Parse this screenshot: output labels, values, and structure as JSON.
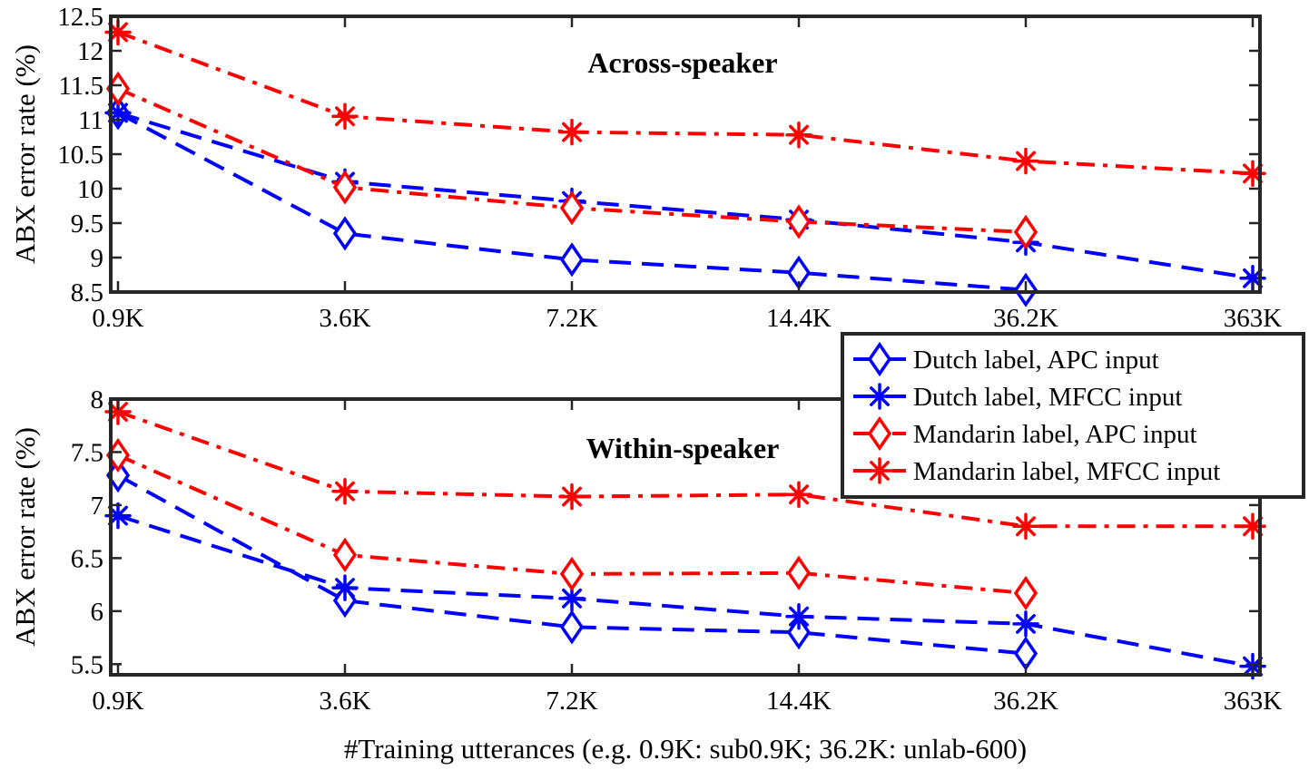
{
  "chart_data": [
    {
      "type": "line",
      "title": "Across-speaker",
      "xlabel": "",
      "ylabel": "ABX error rate (%)",
      "categories": [
        "0.9K",
        "3.6K",
        "7.2K",
        "14.4K",
        "36.2K",
        "363K"
      ],
      "ylim": [
        8.5,
        12.5
      ],
      "yticks": [
        "8.5",
        "9",
        "9.5",
        "10",
        "10.5",
        "11",
        "11.5",
        "12",
        "12.5"
      ],
      "series": [
        {
          "name": "Dutch label, APC input",
          "color": "#0000ff",
          "marker": "diamond",
          "line": "dashed",
          "values": [
            11.1,
            9.35,
            8.97,
            8.78,
            8.53,
            null
          ]
        },
        {
          "name": "Dutch label, MFCC input",
          "color": "#0000ff",
          "marker": "asterisk",
          "line": "dashed",
          "values": [
            11.1,
            10.1,
            9.82,
            9.55,
            9.22,
            8.7
          ]
        },
        {
          "name": "Mandarin label, APC input",
          "color": "#ff0000",
          "marker": "diamond",
          "line": "dashdot",
          "values": [
            11.45,
            10.02,
            9.72,
            9.52,
            9.37,
            null
          ]
        },
        {
          "name": "Mandarin label, MFCC input",
          "color": "#ff0000",
          "marker": "asterisk",
          "line": "dashdot",
          "values": [
            12.27,
            11.05,
            10.82,
            10.78,
            10.4,
            10.22
          ]
        }
      ]
    },
    {
      "type": "line",
      "title": "Within-speaker",
      "xlabel": "#Training utterances (e.g. 0.9K: sub0.9K; 36.2K: unlab-600)",
      "ylabel": "ABX error rate (%)",
      "categories": [
        "0.9K",
        "3.6K",
        "7.2K",
        "14.4K",
        "36.2K",
        "363K"
      ],
      "ylim": [
        5.4,
        8.0
      ],
      "yticks": [
        "5.5",
        "6",
        "6.5",
        "7",
        "7.5",
        "8"
      ],
      "series": [
        {
          "name": "Dutch label, APC input",
          "color": "#0000ff",
          "marker": "diamond",
          "line": "dashed",
          "values": [
            7.28,
            6.1,
            5.85,
            5.8,
            5.6,
            null
          ]
        },
        {
          "name": "Dutch label, MFCC input",
          "color": "#0000ff",
          "marker": "asterisk",
          "line": "dashed",
          "values": [
            6.9,
            6.22,
            6.12,
            5.95,
            5.88,
            5.48
          ]
        },
        {
          "name": "Mandarin label, APC input",
          "color": "#ff0000",
          "marker": "diamond",
          "line": "dashdot",
          "values": [
            7.47,
            6.53,
            6.35,
            6.36,
            6.17,
            null
          ]
        },
        {
          "name": "Mandarin label, MFCC input",
          "color": "#ff0000",
          "marker": "asterisk",
          "line": "dashdot",
          "values": [
            7.88,
            7.13,
            7.08,
            7.1,
            6.8,
            6.8
          ]
        }
      ]
    }
  ],
  "legend": {
    "placement": "right, between panels",
    "items": [
      {
        "label": "Dutch label, APC input",
        "color": "#0000ff",
        "marker": "diamond",
        "line": "dashed"
      },
      {
        "label": "Dutch label, MFCC input",
        "color": "#0000ff",
        "marker": "asterisk",
        "line": "dashed"
      },
      {
        "label": "Mandarin label, APC input",
        "color": "#ff0000",
        "marker": "diamond",
        "line": "dashdot"
      },
      {
        "label": "Mandarin label, MFCC input",
        "color": "#ff0000",
        "marker": "asterisk",
        "line": "dashdot"
      }
    ]
  }
}
